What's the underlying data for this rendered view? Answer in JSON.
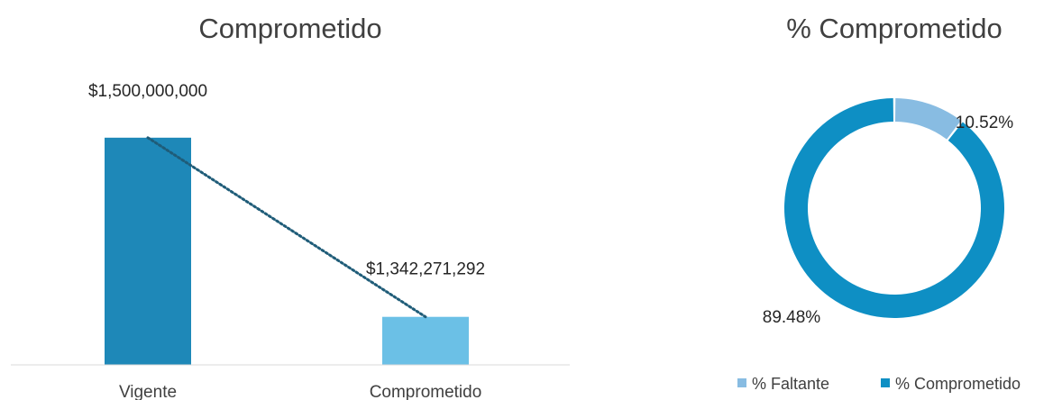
{
  "chart_data": [
    {
      "type": "bar",
      "title": "Comprometido",
      "categories": [
        "Vigente",
        "Comprometido"
      ],
      "values": [
        1500000000,
        1342271292
      ],
      "value_labels": [
        "$1,500,000,000",
        "$1,342,271,292"
      ],
      "ylim": [
        1300000000,
        1530000000
      ],
      "trendline": "dotted line connecting bar tops",
      "grid": false,
      "colors": [
        "#1E88B8",
        "#6BC0E6"
      ],
      "trend_color": "#1F5C78"
    },
    {
      "type": "pie",
      "style": "donut",
      "title": "% Comprometido",
      "slices": [
        {
          "name": "% Faltante",
          "value": 10.52,
          "label": "10.52%",
          "color": "#88BCE2"
        },
        {
          "name": "% Comprometido",
          "value": 89.48,
          "label": "89.48%",
          "color": "#0E8FC4"
        }
      ],
      "legend_position": "bottom"
    }
  ]
}
